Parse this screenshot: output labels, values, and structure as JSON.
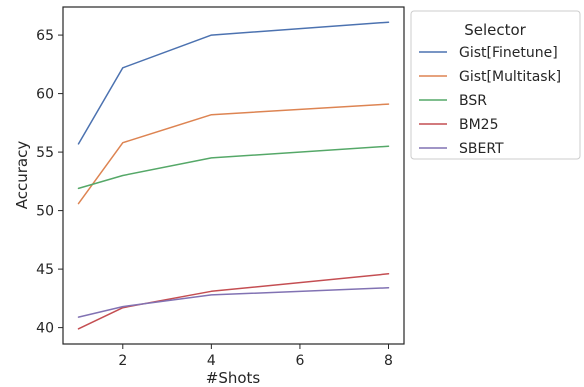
{
  "chart_data": {
    "type": "line",
    "title": "",
    "xlabel": "#Shots",
    "ylabel": "Accuracy",
    "xlim": [
      0.65,
      8.35
    ],
    "ylim": [
      38.6,
      67.4
    ],
    "xticks": [
      2,
      4,
      6,
      8
    ],
    "yticks": [
      40,
      45,
      50,
      55,
      60,
      65
    ],
    "grid": false,
    "legend": {
      "title": "Selector",
      "placement": "outside-right-top"
    },
    "x": [
      1,
      2,
      4,
      8
    ],
    "series": [
      {
        "name": "Gist[Finetune]",
        "color": "#4c72b0",
        "values": [
          55.7,
          62.2,
          65.0,
          66.1
        ]
      },
      {
        "name": "Gist[Multitask]",
        "color": "#dd8452",
        "values": [
          50.6,
          55.8,
          58.2,
          59.1
        ]
      },
      {
        "name": "BSR",
        "color": "#55a868",
        "values": [
          51.9,
          53.0,
          54.5,
          55.5
        ]
      },
      {
        "name": "BM25",
        "color": "#c44e52",
        "values": [
          39.9,
          41.7,
          43.1,
          44.6
        ]
      },
      {
        "name": "SBERT",
        "color": "#8172b3",
        "values": [
          40.9,
          41.8,
          42.8,
          43.4
        ]
      }
    ]
  }
}
